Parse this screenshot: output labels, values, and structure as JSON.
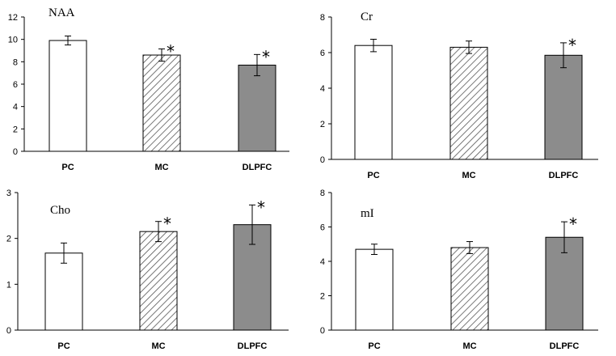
{
  "chart_data": [
    {
      "type": "bar",
      "title": "NAA",
      "categories": [
        "PC",
        "MC",
        "DLPFC"
      ],
      "values": [
        9.9,
        8.6,
        7.7
      ],
      "errors": [
        0.4,
        0.55,
        0.95
      ],
      "significant": [
        false,
        true,
        true
      ],
      "marker": "*",
      "ylim": [
        0,
        12
      ],
      "yticks": [
        0,
        2,
        4,
        6,
        8,
        10,
        12
      ]
    },
    {
      "type": "bar",
      "title": "Cr",
      "categories": [
        "PC",
        "MC",
        "DLPFC"
      ],
      "values": [
        6.4,
        6.3,
        5.85
      ],
      "errors": [
        0.35,
        0.35,
        0.7
      ],
      "significant": [
        false,
        false,
        true
      ],
      "marker": "*",
      "ylim": [
        0,
        8
      ],
      "yticks": [
        0,
        2,
        4,
        6,
        8
      ]
    },
    {
      "type": "bar",
      "title": "Cho",
      "categories": [
        "PC",
        "MC",
        "DLPFC"
      ],
      "values": [
        1.68,
        2.15,
        2.3
      ],
      "errors": [
        0.22,
        0.22,
        0.43
      ],
      "significant": [
        false,
        true,
        true
      ],
      "marker": "*",
      "ylim": [
        0,
        3
      ],
      "yticks": [
        0,
        1,
        2,
        3
      ]
    },
    {
      "type": "bar",
      "title": "mI",
      "categories": [
        "PC",
        "MC",
        "DLPFC"
      ],
      "values": [
        4.7,
        4.8,
        5.4
      ],
      "errors": [
        0.3,
        0.35,
        0.9
      ],
      "significant": [
        false,
        false,
        true
      ],
      "marker": "*",
      "ylim": [
        0,
        8
      ],
      "yticks": [
        0,
        2,
        4,
        6,
        8
      ]
    }
  ],
  "style": {
    "fills": [
      "#ffffff",
      "hatch",
      "#8c8c8c"
    ],
    "stroke": "#000000"
  }
}
